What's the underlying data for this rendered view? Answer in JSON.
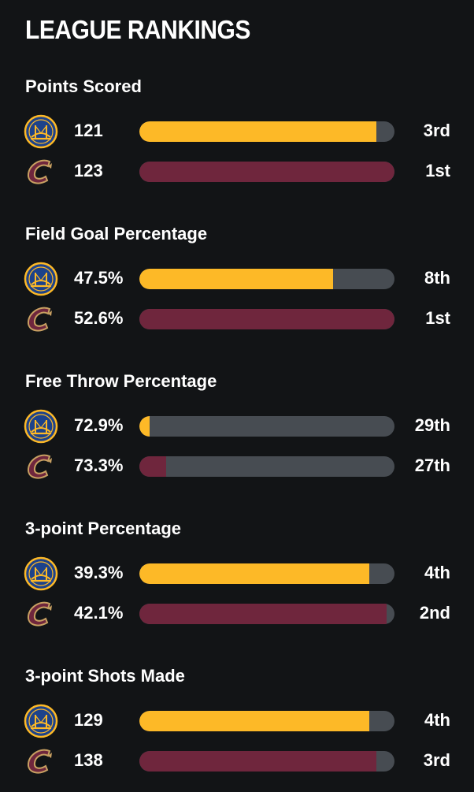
{
  "page_title": "LEAGUE RANKINGS",
  "colors": {
    "background": "#121416",
    "track": "#474c52",
    "warriors": "#fdb927",
    "cavaliers": "#6f263d"
  },
  "teams": {
    "warriors": {
      "logo_icon": "warriors-logo-icon"
    },
    "cavaliers": {
      "logo_icon": "cavaliers-logo-icon"
    }
  },
  "sections": [
    {
      "title": "Points Scored",
      "rows": [
        {
          "team": "warriors",
          "value": "121",
          "rank": "3rd",
          "fill_fraction": 0.93
        },
        {
          "team": "cavaliers",
          "value": "123",
          "rank": "1st",
          "fill_fraction": 1.0
        }
      ]
    },
    {
      "title": "Field Goal Percentage",
      "rows": [
        {
          "team": "warriors",
          "value": "47.5%",
          "rank": "8th",
          "fill_fraction": 0.76
        },
        {
          "team": "cavaliers",
          "value": "52.6%",
          "rank": "1st",
          "fill_fraction": 1.0
        }
      ]
    },
    {
      "title": "Free Throw Percentage",
      "rows": [
        {
          "team": "warriors",
          "value": "72.9%",
          "rank": "29th",
          "fill_fraction": 0.04
        },
        {
          "team": "cavaliers",
          "value": "73.3%",
          "rank": "27th",
          "fill_fraction": 0.105
        }
      ]
    },
    {
      "title": "3-point Percentage",
      "rows": [
        {
          "team": "warriors",
          "value": "39.3%",
          "rank": "4th",
          "fill_fraction": 0.9
        },
        {
          "team": "cavaliers",
          "value": "42.1%",
          "rank": "2nd",
          "fill_fraction": 0.97
        }
      ]
    },
    {
      "title": "3-point Shots Made",
      "rows": [
        {
          "team": "warriors",
          "value": "129",
          "rank": "4th",
          "fill_fraction": 0.9
        },
        {
          "team": "cavaliers",
          "value": "138",
          "rank": "3rd",
          "fill_fraction": 0.93
        }
      ]
    }
  ]
}
